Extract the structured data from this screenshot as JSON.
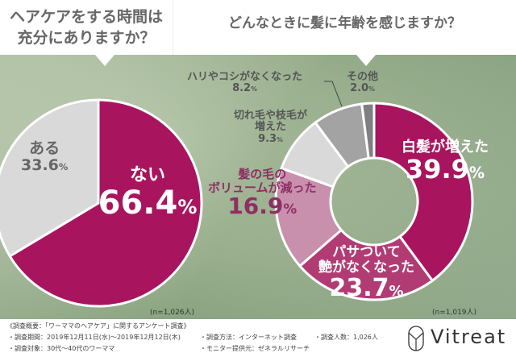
{
  "left_title": "ヘアケアをする時間は充分にありますか？",
  "left_title_lines": [
    "ヘアケアをする時間は",
    "充分にありますか？"
  ],
  "right_title": "どんなときに髪に年齢を感じますか？",
  "chart_data": [
    {
      "type": "pie",
      "title": "ヘアケアをする時間は充分にありますか？",
      "categories": [
        "ない",
        "ある"
      ],
      "values": [
        66.4,
        33.6
      ],
      "colors": [
        "#a8155e",
        "#d9d9d9"
      ],
      "note": "(n=1,026人)"
    },
    {
      "type": "pie",
      "donut": true,
      "title": "どんなときに髪に年齢を感じますか？",
      "categories": [
        "白髪が増えた",
        "パサついて艶がなくなった",
        "髪の毛のボリュームが減った",
        "切れ毛や枝毛が増えた",
        "ハリやコシがなくなった",
        "その他"
      ],
      "values": [
        39.9,
        23.7,
        16.9,
        9.3,
        8.2,
        2.0
      ],
      "colors": [
        "#a8155e",
        "#b13c74",
        "#c890ad",
        "#d9d9d9",
        "#a3a3a3",
        "#7f7f7f"
      ],
      "note": "(n=1,019人)"
    }
  ],
  "labels": {
    "nai": "ない",
    "nai_pct": "66.4",
    "aru": "ある",
    "aru_pct": "33.6",
    "shiraga": "白髪が増えた",
    "shiraga_pct": "39.9",
    "pasa1": "パサついて",
    "pasa2": "艶がなくなった",
    "pasa_pct": "23.7",
    "vol1": "髪の毛の",
    "vol2": "ボリュームが減った",
    "vol_pct": "16.9",
    "kire1": "切れ毛や枝毛が",
    "kire2": "増えた",
    "kire_pct": "9.3",
    "hari": "ハリやコシがなくなった",
    "hari_pct": "8.2",
    "other": "その他",
    "other_pct": "2.0",
    "percent": "%"
  },
  "footer": {
    "summary": "《調査概要：「ワーママのヘアケア」に関するアンケート調査》",
    "period": "・調査期間：2019年12月11日(水)～2019年12月12日(木)",
    "method": "・調査方法：インターネット調査",
    "count": "・調査人数：1,026人",
    "target": "・調査対象：30代～40代のワーママ",
    "provider": "・モニター提供元：ゼネラルリサーチ",
    "brand": "Vitreat"
  }
}
